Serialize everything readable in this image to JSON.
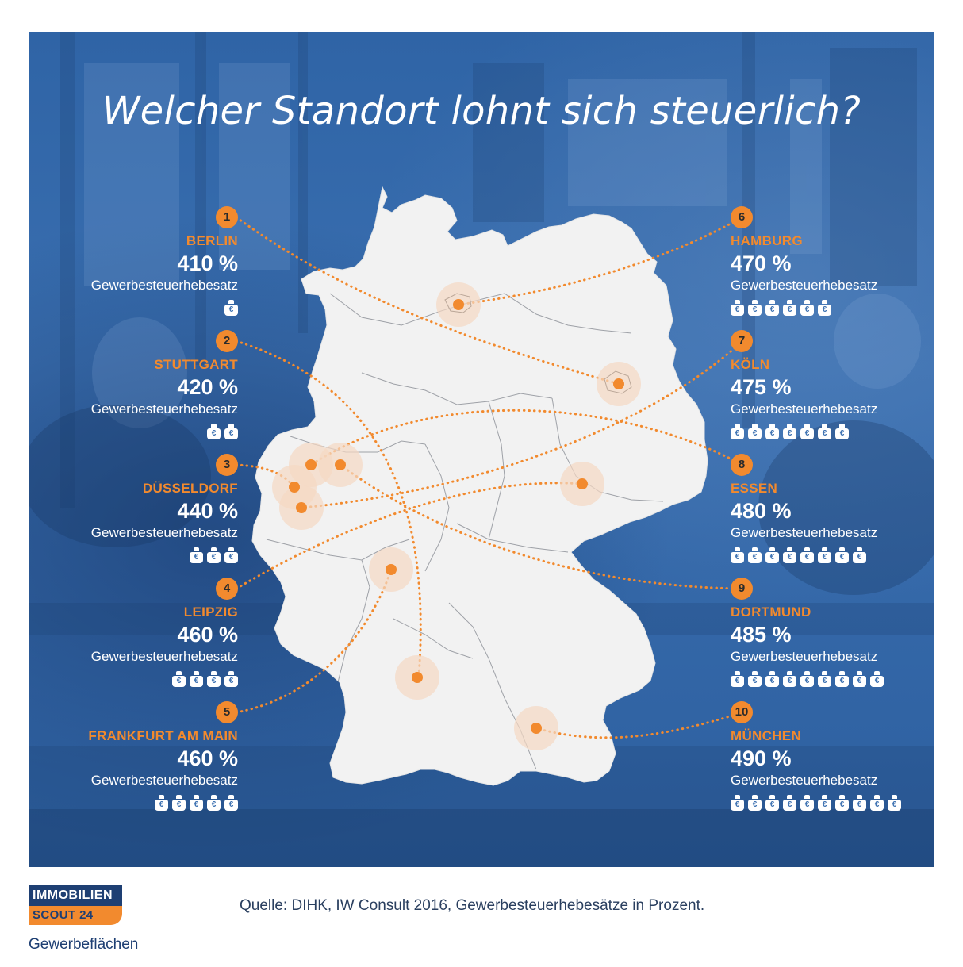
{
  "title": "Welcher Standort lohnt sich steuerlich?",
  "cities": [
    {
      "rank": "1",
      "name": "BERLIN",
      "value": "410 %",
      "label": "Gewerbesteuerhebesatz",
      "bags": 1
    },
    {
      "rank": "2",
      "name": "STUTTGART",
      "value": "420 %",
      "label": "Gewerbesteuerhebesatz",
      "bags": 2
    },
    {
      "rank": "3",
      "name": "DÜSSELDORF",
      "value": "440 %",
      "label": "Gewerbesteuerhebesatz",
      "bags": 3
    },
    {
      "rank": "4",
      "name": "LEIPZIG",
      "value": "460 %",
      "label": "Gewerbesteuerhebesatz",
      "bags": 4
    },
    {
      "rank": "5",
      "name": "FRANKFURT AM MAIN",
      "value": "460 %",
      "label": "Gewerbesteuerhebesatz",
      "bags": 5
    },
    {
      "rank": "6",
      "name": "HAMBURG",
      "value": "470 %",
      "label": "Gewerbesteuerhebesatz",
      "bags": 6
    },
    {
      "rank": "7",
      "name": "KÖLN",
      "value": "475 %",
      "label": "Gewerbesteuerhebesatz",
      "bags": 7
    },
    {
      "rank": "8",
      "name": "ESSEN",
      "value": "480 %",
      "label": "Gewerbesteuerhebesatz",
      "bags": 8
    },
    {
      "rank": "9",
      "name": "DORTMUND",
      "value": "485 %",
      "label": "Gewerbesteuerhebesatz",
      "bags": 9
    },
    {
      "rank": "10",
      "name": "MÜNCHEN",
      "value": "490 %",
      "label": "Gewerbesteuerhebesatz",
      "bags": 10
    }
  ],
  "bag_symbol": "€",
  "icons": {
    "bag": "money-bag-icon",
    "map": "germany-map"
  },
  "colors": {
    "accent": "#f28a2e",
    "background": "#3a6fb0",
    "map": "#f2f2f2",
    "brand_dark": "#1e3f73"
  },
  "logo": {
    "line1": "IMMOBILIEN",
    "line2": "SCOUT 24"
  },
  "logo_sub": "Gewerbeflächen",
  "source": "Quelle: DIHK, IW Consult 2016, Gewerbesteuerhebesätze in Prozent."
}
